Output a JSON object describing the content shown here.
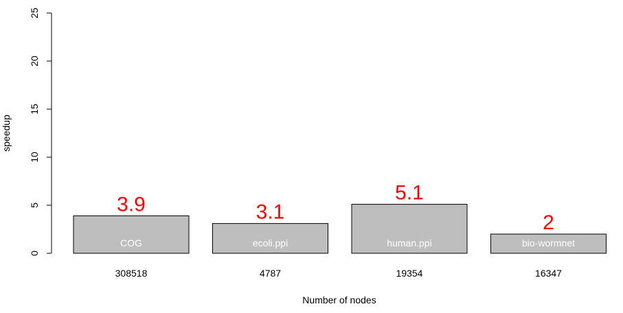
{
  "chart_data": {
    "type": "bar",
    "categories": [
      "308518",
      "4787",
      "19354",
      "16347"
    ],
    "bar_names": [
      "COG",
      "ecoli.ppi",
      "human.ppi",
      "bio-wormnet"
    ],
    "values": [
      3.9,
      3.1,
      5.1,
      2
    ],
    "value_labels": [
      "3.9",
      "3.1",
      "5.1",
      "2"
    ],
    "xlabel": "Number of nodes",
    "ylabel": "speedup",
    "ylim": [
      0,
      25
    ],
    "yticks": [
      0,
      5,
      10,
      15,
      20,
      25
    ],
    "grid": false,
    "colors": {
      "bar_fill": "#bebebe",
      "bar_stroke": "#000000",
      "bar_name": "#ffffff",
      "value_label": "#ff0000"
    }
  }
}
